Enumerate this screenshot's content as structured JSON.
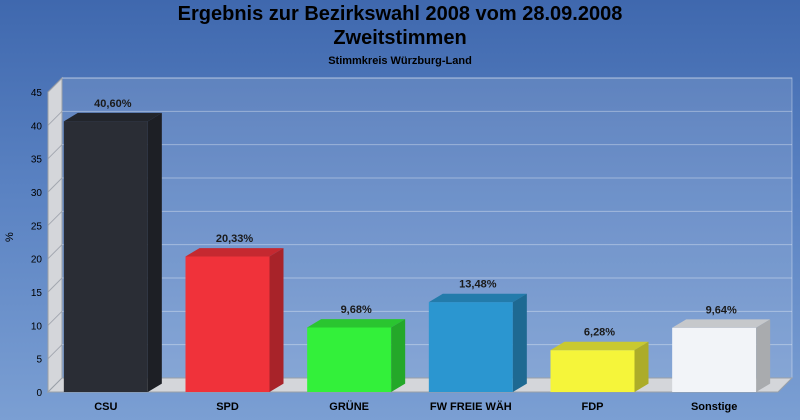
{
  "chart_data": {
    "type": "bar",
    "title": "Ergebnis zur Bezirkswahl 2008 vom 28.09.2008",
    "title_line2": "Zweitstimmen",
    "subtitle": "Stimmkreis Würzburg-Land",
    "ylabel": "%",
    "xlabel": "",
    "ylim": [
      0,
      45
    ],
    "yticks": [
      0,
      5,
      10,
      15,
      20,
      25,
      30,
      35,
      40,
      45
    ],
    "grid": true,
    "categories": [
      "CSU",
      "SPD",
      "GRÜNE",
      "FW FREIE WÄH",
      "FDP",
      "Sonstige"
    ],
    "values": [
      40.6,
      20.33,
      9.68,
      13.48,
      6.28,
      9.64
    ],
    "value_labels": [
      "40,60%",
      "20,33%",
      "9,68%",
      "13,48%",
      "6,28%",
      "9,64%"
    ],
    "colors": [
      "#2a2d35",
      "#f0323a",
      "#33f03a",
      "#2b96d0",
      "#f5f53a",
      "#f2f4f8"
    ]
  }
}
